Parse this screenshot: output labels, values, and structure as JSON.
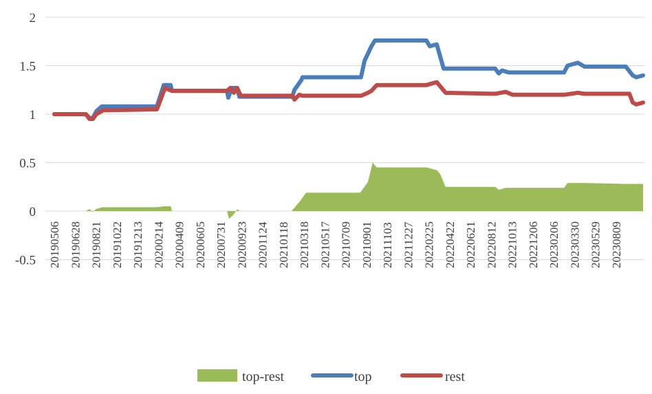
{
  "chart_data": {
    "type": "line",
    "title": "",
    "xlabel": "",
    "ylabel": "",
    "ylim": [
      -0.5,
      2
    ],
    "yticks": [
      "2",
      "1.5",
      "1",
      "0.5",
      "0",
      "-0.5"
    ],
    "ytick_values": [
      2,
      1.5,
      1,
      0.5,
      0,
      -0.5
    ],
    "grid": true,
    "legend_position": "bottom",
    "categories": [
      "20190506",
      "20190628",
      "20190821",
      "20191022",
      "20191213",
      "20200214",
      "20200409",
      "20200605",
      "20200731",
      "20200923",
      "20201124",
      "20210118",
      "20210318",
      "20210517",
      "20210709",
      "20210901",
      "20211103",
      "20211227",
      "20220225",
      "20220422",
      "20220621",
      "20220812",
      "20221013",
      "20221206",
      "20230206",
      "20230330",
      "20230529",
      "20230809"
    ],
    "x_note": "x values are positions in category-index units (0 = first category)",
    "series": [
      {
        "name": "top-rest",
        "kind": "area",
        "color": "#9bbb59",
        "points": [
          [
            0,
            0
          ],
          [
            1.5,
            0
          ],
          [
            1.7,
            0.02
          ],
          [
            1.85,
            -0.01
          ],
          [
            2.0,
            0.02
          ],
          [
            2.3,
            0.04
          ],
          [
            4.9,
            0.04
          ],
          [
            5.3,
            0.05
          ],
          [
            5.6,
            0.05
          ],
          [
            5.65,
            0
          ],
          [
            8.3,
            0
          ],
          [
            8.4,
            -0.08
          ],
          [
            8.6,
            -0.04
          ],
          [
            8.8,
            0.02
          ],
          [
            8.9,
            0
          ],
          [
            11.4,
            0
          ],
          [
            11.8,
            0.1
          ],
          [
            12.1,
            0.19
          ],
          [
            14.7,
            0.19
          ],
          [
            15.07,
            0.3
          ],
          [
            15.3,
            0.5
          ],
          [
            15.5,
            0.45
          ],
          [
            17.9,
            0.45
          ],
          [
            18.4,
            0.42
          ],
          [
            18.55,
            0.38
          ],
          [
            18.8,
            0.25
          ],
          [
            21.2,
            0.25
          ],
          [
            21.36,
            0.22
          ],
          [
            21.7,
            0.24
          ],
          [
            24.5,
            0.24
          ],
          [
            24.67,
            0.29
          ],
          [
            25.5,
            0.29
          ],
          [
            27.5,
            0.28
          ],
          [
            28.3,
            0.28
          ]
        ]
      },
      {
        "name": "top",
        "kind": "line",
        "color": "#4a7ebb",
        "points": [
          [
            0,
            1.0
          ],
          [
            1.5,
            1.0
          ],
          [
            1.7,
            0.96
          ],
          [
            1.85,
            0.96
          ],
          [
            2.02,
            1.03
          ],
          [
            2.28,
            1.08
          ],
          [
            4.93,
            1.08
          ],
          [
            5.26,
            1.3
          ],
          [
            5.59,
            1.3
          ],
          [
            5.65,
            1.24
          ],
          [
            8.3,
            1.24
          ],
          [
            8.36,
            1.17
          ],
          [
            8.53,
            1.27
          ],
          [
            8.79,
            1.27
          ],
          [
            8.89,
            1.18
          ],
          [
            11.44,
            1.18
          ],
          [
            11.54,
            1.25
          ],
          [
            11.87,
            1.35
          ],
          [
            11.93,
            1.38
          ],
          [
            14.74,
            1.38
          ],
          [
            14.91,
            1.55
          ],
          [
            15.24,
            1.7
          ],
          [
            15.41,
            1.76
          ],
          [
            17.88,
            1.76
          ],
          [
            18.05,
            1.7
          ],
          [
            18.38,
            1.72
          ],
          [
            18.71,
            1.47
          ],
          [
            21.19,
            1.47
          ],
          [
            21.36,
            1.42
          ],
          [
            21.52,
            1.45
          ],
          [
            21.85,
            1.43
          ],
          [
            24.5,
            1.43
          ],
          [
            24.67,
            1.5
          ],
          [
            25.16,
            1.53
          ],
          [
            25.49,
            1.49
          ],
          [
            27.47,
            1.49
          ],
          [
            27.8,
            1.4
          ],
          [
            27.97,
            1.38
          ],
          [
            28.3,
            1.4
          ]
        ]
      },
      {
        "name": "rest",
        "kind": "line",
        "color": "#be4b48",
        "points": [
          [
            0,
            1.0
          ],
          [
            1.52,
            1.0
          ],
          [
            1.69,
            0.95
          ],
          [
            1.85,
            0.95
          ],
          [
            2.02,
            1.0
          ],
          [
            2.35,
            1.04
          ],
          [
            4.93,
            1.05
          ],
          [
            5.32,
            1.27
          ],
          [
            5.65,
            1.24
          ],
          [
            8.3,
            1.24
          ],
          [
            8.46,
            1.27
          ],
          [
            8.63,
            1.22
          ],
          [
            8.79,
            1.27
          ],
          [
            8.96,
            1.19
          ],
          [
            11.44,
            1.19
          ],
          [
            11.54,
            1.15
          ],
          [
            11.77,
            1.2
          ],
          [
            11.93,
            1.19
          ],
          [
            14.74,
            1.19
          ],
          [
            15.07,
            1.22
          ],
          [
            15.24,
            1.24
          ],
          [
            15.5,
            1.3
          ],
          [
            17.88,
            1.3
          ],
          [
            18.38,
            1.33
          ],
          [
            18.81,
            1.22
          ],
          [
            21.19,
            1.21
          ],
          [
            21.69,
            1.23
          ],
          [
            22.02,
            1.2
          ],
          [
            24.5,
            1.2
          ],
          [
            25.16,
            1.22
          ],
          [
            25.49,
            1.21
          ],
          [
            27.64,
            1.21
          ],
          [
            27.8,
            1.12
          ],
          [
            27.97,
            1.1
          ],
          [
            28.3,
            1.12
          ]
        ]
      }
    ]
  }
}
